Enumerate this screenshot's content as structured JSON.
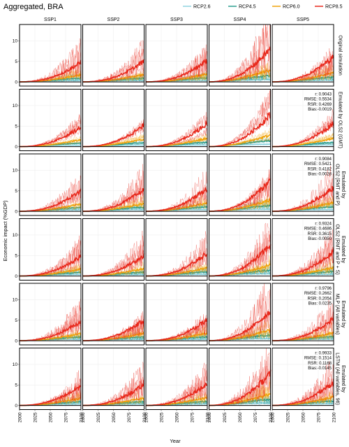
{
  "figure": {
    "title": "Aggregated, BRA",
    "xlabel": "Year",
    "ylabel": "Economic impact (%GDP)"
  },
  "legend": [
    {
      "label": "RCP2.6",
      "color": "#8fd3e0"
    },
    {
      "label": "RCP4.5",
      "color": "#2a9d8f"
    },
    {
      "label": "RCP6.0",
      "color": "#f0a30a"
    },
    {
      "label": "RCP8.5",
      "color": "#e8291c"
    }
  ],
  "columns": [
    "SSP1",
    "SSP2",
    "SSP3",
    "SSP4",
    "SSP5"
  ],
  "rows": [
    {
      "label": "Original simulation",
      "stats": null
    },
    {
      "label": "Emulated by OLS2 (GMT)",
      "stats": [
        "r: 0.9043",
        "RMSE: 0.5534",
        "RSR: 0.4269",
        "Bias:-0.0019"
      ]
    },
    {
      "label": "Emulated by OLS2 (RMT and P)",
      "stats": [
        "r: 0.9084",
        "RMSE: 0.5421",
        "RSR: 0.4182",
        "Bias:-0.0028"
      ]
    },
    {
      "label": "Emulated by OLS2 (RMT and P + S)",
      "stats": [
        "r: 0.9324",
        "RMSE: 0.4686",
        "RSR: 0.3615",
        "Bias:-0.0050"
      ]
    },
    {
      "label": "Emulated by MLP (All variables)",
      "stats": [
        "r: 0.9796",
        "RMSE: 0.2662",
        "RSR: 0.2054",
        "Bias: 0.0235"
      ]
    },
    {
      "label": "Emulated by LSTM (All variables, 96)",
      "stats": [
        "r: 0.9933",
        "RMSE: 0.1514",
        "RSR: 0.1168",
        "Bias:-0.0145"
      ]
    }
  ],
  "chart_data": {
    "type": "line",
    "x": [
      2000,
      2010,
      2020,
      2030,
      2040,
      2050,
      2060,
      2070,
      2080,
      2090,
      2100
    ],
    "xticks": [
      2000,
      2025,
      2050,
      2075,
      2100
    ],
    "xlim": [
      2000,
      2100
    ],
    "yticks": [
      0,
      5,
      10
    ],
    "ylim": [
      -1,
      14
    ],
    "series_mean": [
      {
        "name": "RCP2.6",
        "values": [
          0,
          0.05,
          0.1,
          0.18,
          0.25,
          0.3,
          0.35,
          0.38,
          0.4,
          0.4,
          0.4
        ]
      },
      {
        "name": "RCP4.5",
        "values": [
          0,
          0.05,
          0.12,
          0.2,
          0.32,
          0.45,
          0.6,
          0.75,
          0.88,
          0.98,
          1.05
        ]
      },
      {
        "name": "RCP6.0",
        "values": [
          0,
          0.05,
          0.12,
          0.22,
          0.38,
          0.58,
          0.85,
          1.1,
          1.4,
          1.7,
          2.0
        ]
      },
      {
        "name": "RCP8.5",
        "values": [
          0,
          0.05,
          0.18,
          0.4,
          0.75,
          1.2,
          1.8,
          2.6,
          3.5,
          4.5,
          5.6
        ]
      }
    ],
    "panel_scale": [
      [
        0.85,
        0.9,
        0.95,
        1.45,
        1.1
      ],
      [
        0.85,
        0.92,
        1.0,
        1.4,
        1.0
      ],
      [
        0.9,
        0.95,
        1.0,
        1.35,
        1.05
      ],
      [
        0.85,
        0.9,
        1.0,
        1.35,
        1.05
      ],
      [
        0.85,
        0.9,
        0.9,
        1.3,
        0.95
      ],
      [
        0.85,
        0.9,
        0.95,
        1.4,
        1.0
      ]
    ],
    "spread": [
      [
        1.6,
        1.6,
        1.6,
        1.7,
        1.6
      ],
      [
        0.6,
        0.6,
        0.6,
        0.6,
        0.6
      ],
      [
        1.3,
        1.3,
        1.3,
        1.3,
        1.3
      ],
      [
        1.4,
        1.4,
        1.4,
        1.4,
        1.4
      ],
      [
        1.55,
        1.55,
        1.55,
        1.55,
        1.55
      ],
      [
        1.6,
        1.6,
        1.6,
        1.65,
        1.6
      ]
    ]
  }
}
